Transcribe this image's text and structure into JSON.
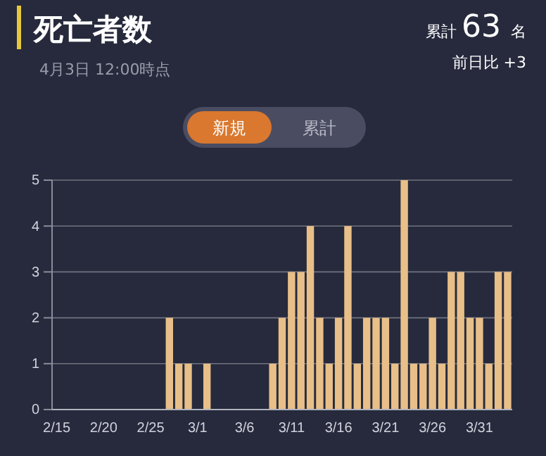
{
  "chart_data": {
    "type": "bar",
    "title": "死亡者数",
    "subtitle": "4月3日 12:00時点",
    "annotations": [
      "累計",
      "63",
      "名",
      "前日比 +3",
      "新規",
      "累計"
    ],
    "categories": [
      "2/15",
      null,
      null,
      null,
      null,
      "2/20",
      null,
      null,
      null,
      null,
      "2/25",
      null,
      null,
      null,
      null,
      "3/1",
      null,
      null,
      null,
      null,
      "3/6",
      null,
      null,
      null,
      null,
      "3/11",
      null,
      null,
      null,
      null,
      "3/16",
      null,
      null,
      null,
      null,
      "3/21",
      null,
      null,
      null,
      null,
      "3/26",
      null,
      null,
      null,
      null,
      "3/31",
      null,
      null,
      null
    ],
    "values": [
      0,
      0,
      0,
      0,
      0,
      0,
      0,
      0,
      0,
      0,
      0,
      0,
      2,
      1,
      1,
      0,
      1,
      0,
      0,
      0,
      0,
      0,
      0,
      1,
      2,
      3,
      3,
      4,
      2,
      1,
      2,
      4,
      1,
      2,
      2,
      2,
      1,
      5,
      1,
      1,
      2,
      1,
      3,
      3,
      2,
      2,
      1,
      3,
      3
    ],
    "color": "#e8bf88",
    "ylim": [
      0,
      5
    ],
    "yticks": [
      0,
      1,
      2,
      3,
      4,
      5
    ],
    "grid": "y"
  }
}
